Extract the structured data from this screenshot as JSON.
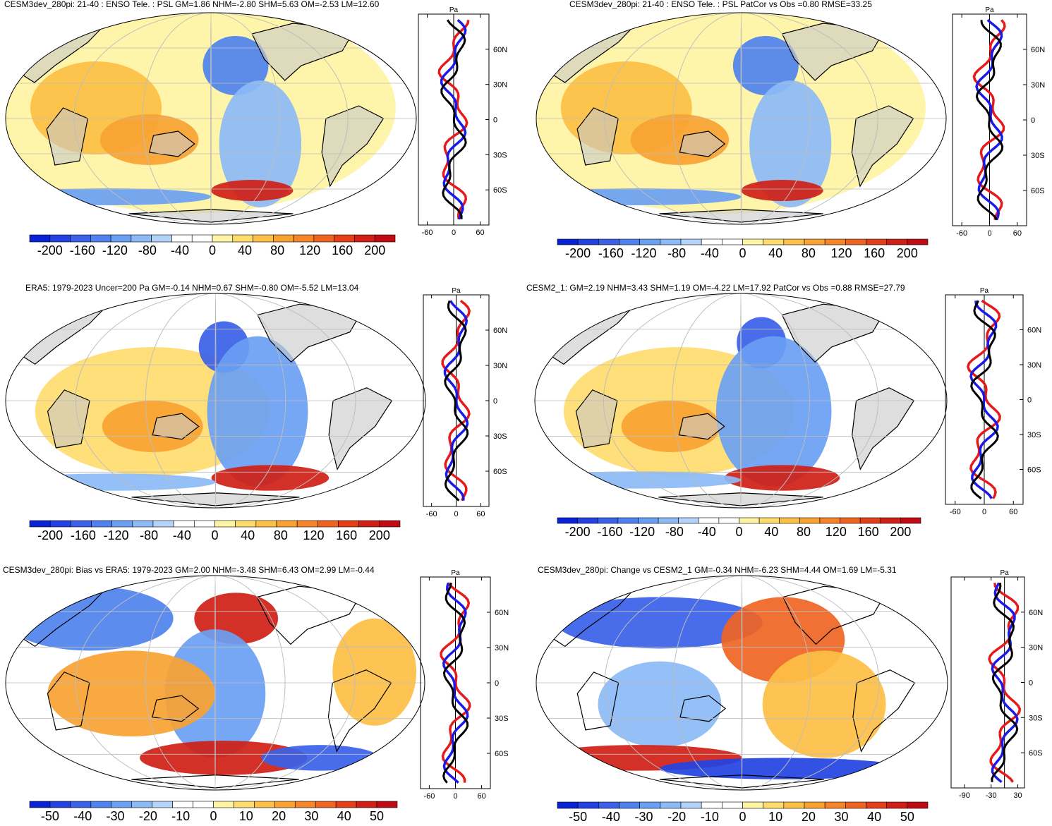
{
  "chart_data": [
    {
      "type": "heatmap",
      "title": "CESM3dev_280pi: 21-40 : ENSO Tele. : PSL GM=1.86 NHM=-2.80 SHM=5.63 OM=-2.53 LM=12.60",
      "colorbar": {
        "ticks": [
          "-200",
          "-160",
          "-120",
          "-80",
          "-40",
          "0",
          "40",
          "80",
          "120",
          "160",
          "200"
        ],
        "range": [
          -200,
          200
        ]
      },
      "profile": {
        "unit": "Pa",
        "xticks": [
          "-60",
          "0",
          "60"
        ],
        "xlim": [
          -80,
          80
        ],
        "yticks": [
          "60N",
          "30N",
          "0",
          "30S",
          "60S"
        ],
        "ylim": [
          -90,
          90
        ]
      }
    },
    {
      "type": "heatmap",
      "title": "CESM3dev_280pi: 21-40 : ENSO Tele. : PSL PatCor vs Obs =0.80 RMSE=33.25",
      "colorbar": {
        "ticks": [
          "-200",
          "-160",
          "-120",
          "-80",
          "-40",
          "0",
          "40",
          "80",
          "120",
          "160",
          "200"
        ],
        "range": [
          -200,
          200
        ]
      },
      "profile": {
        "unit": "Pa",
        "xticks": [
          "-60",
          "0",
          "60"
        ],
        "xlim": [
          -80,
          80
        ],
        "yticks": [
          "60N",
          "30N",
          "0",
          "30S",
          "60S"
        ],
        "ylim": [
          -90,
          90
        ]
      }
    },
    {
      "type": "heatmap",
      "title": "ERA5: 1979-2023 Uncer=200 Pa GM=-0.14 NHM=0.67 SHM=-0.80 OM=-5.52 LM=13.04",
      "colorbar": {
        "ticks": [
          "-200",
          "-160",
          "-120",
          "-80",
          "-40",
          "0",
          "40",
          "80",
          "120",
          "160",
          "200"
        ],
        "range": [
          -200,
          200
        ]
      },
      "profile": {
        "unit": "Pa",
        "xticks": [
          "-60",
          "0",
          "60"
        ],
        "xlim": [
          -80,
          80
        ],
        "yticks": [
          "60N",
          "30N",
          "0",
          "30S",
          "60S"
        ],
        "ylim": [
          -90,
          90
        ]
      }
    },
    {
      "type": "heatmap",
      "title": "CESM2_1: GM=2.19 NHM=3.43 SHM=1.19 OM=-4.22 LM=17.92 PatCor vs Obs =0.88 RMSE=27.79",
      "colorbar": {
        "ticks": [
          "-200",
          "-160",
          "-120",
          "-80",
          "-40",
          "0",
          "40",
          "80",
          "120",
          "160",
          "200"
        ],
        "range": [
          -200,
          200
        ]
      },
      "profile": {
        "unit": "Pa",
        "xticks": [
          "-60",
          "0",
          "60"
        ],
        "xlim": [
          -80,
          80
        ],
        "yticks": [
          "60N",
          "30N",
          "0",
          "30S",
          "60S"
        ],
        "ylim": [
          -90,
          90
        ]
      }
    },
    {
      "type": "heatmap",
      "title": "CESM3dev_280pi: Bias vs ERA5: 1979-2023 GM=2.00 NHM=-3.48 SHM=6.43 OM=2.99 LM=-0.44",
      "colorbar": {
        "ticks": [
          "-50",
          "-40",
          "-30",
          "-20",
          "-10",
          "0",
          "10",
          "20",
          "30",
          "40",
          "50"
        ],
        "range": [
          -50,
          50
        ]
      },
      "profile": {
        "unit": "Pa",
        "xticks": [
          "-60",
          "0",
          "60"
        ],
        "xlim": [
          -80,
          80
        ],
        "yticks": [
          "60N",
          "30N",
          "0",
          "30S",
          "60S"
        ],
        "ylim": [
          -90,
          90
        ]
      }
    },
    {
      "type": "heatmap",
      "title": "CESM3dev_280pi: Change vs CESM2_1 GM=-0.34 NHM=-6.23 SHM=4.44 OM=1.69 LM=-5.31",
      "colorbar": {
        "ticks": [
          "-50",
          "-40",
          "-30",
          "-20",
          "-10",
          "0",
          "10",
          "20",
          "30",
          "40",
          "50"
        ],
        "range": [
          -50,
          50
        ]
      },
      "profile": {
        "unit": "Pa",
        "xticks": [
          "-90",
          "-30",
          "30"
        ],
        "xlim": [
          -120,
          45
        ],
        "yticks": [
          "60N",
          "30N",
          "0",
          "30S",
          "60S"
        ],
        "ylim": [
          -90,
          90
        ]
      }
    }
  ],
  "colors": {
    "colorbar": [
      "#0a22d6",
      "#2243e2",
      "#3a61e8",
      "#4f82ee",
      "#6aa0f3",
      "#8cbaf6",
      "#b3d3f8",
      "#ffffff",
      "#ffffff",
      "#fff4a3",
      "#fedc6e",
      "#fdbf45",
      "#f9a232",
      "#f6852a",
      "#f06422",
      "#e3401a",
      "#cf1f16",
      "#c00a14"
    ],
    "land": "#c8c8c8",
    "profile_model": "#000000",
    "profile_zonal": "#1a1ae6",
    "profile_ocean": "#e61a1a"
  }
}
